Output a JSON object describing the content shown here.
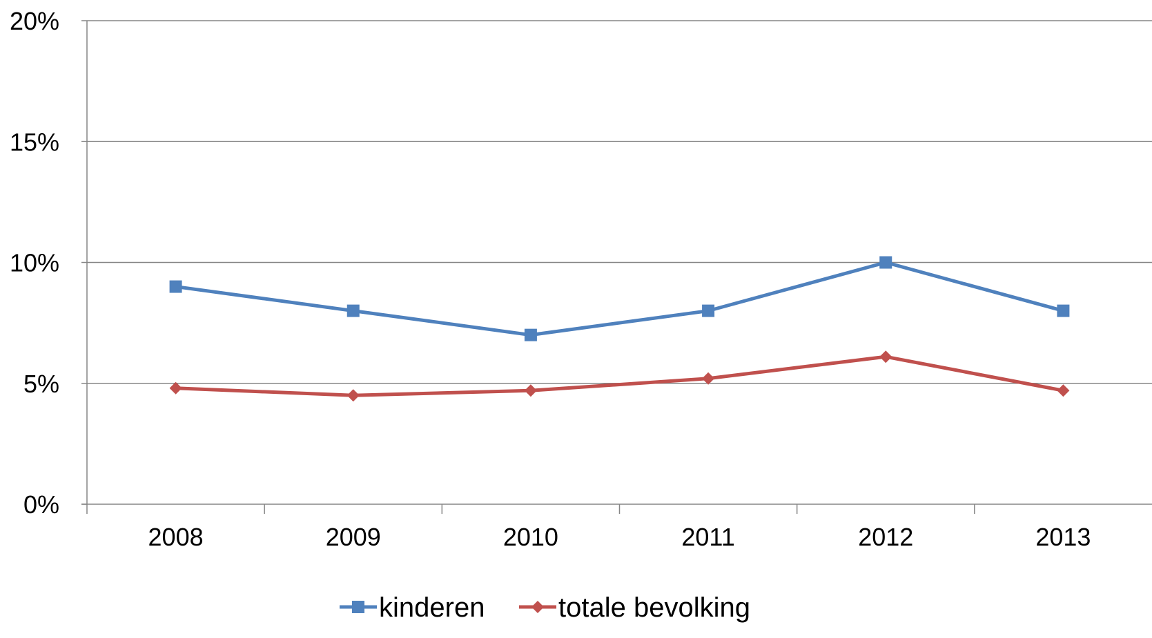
{
  "chart_data": {
    "type": "line",
    "title": "",
    "xlabel": "",
    "ylabel": "",
    "categories": [
      "2008",
      "2009",
      "2010",
      "2011",
      "2012",
      "2013"
    ],
    "ylim": [
      0,
      20
    ],
    "y_ticks": [
      0,
      5,
      10,
      15,
      20
    ],
    "y_tick_labels": [
      "0%",
      "5%",
      "10%",
      "15%",
      "20%"
    ],
    "grid": true,
    "legend_position": "bottom",
    "series": [
      {
        "name": "kinderen",
        "values": [
          9,
          8,
          7,
          8,
          10,
          8
        ],
        "color": "#4F81BD",
        "marker": "square"
      },
      {
        "name": "totale bevolking",
        "values": [
          4.8,
          4.5,
          4.7,
          5.2,
          6.1,
          4.7
        ],
        "color": "#C0504D",
        "marker": "diamond"
      }
    ]
  }
}
